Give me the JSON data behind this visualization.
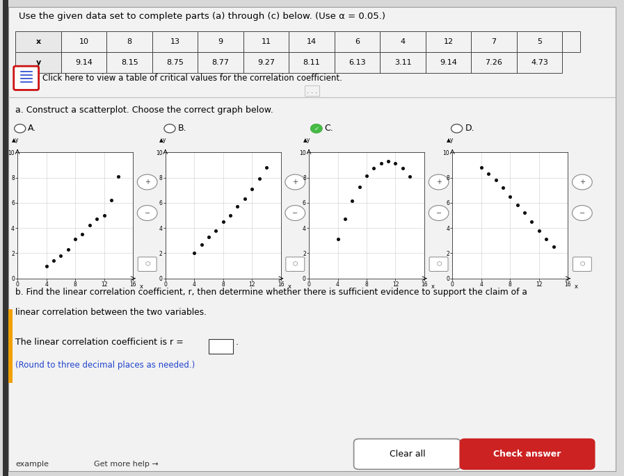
{
  "title": "Use the given data set to complete parts (a) through (c) below. (Use α = 0.05.)",
  "x_data": [
    10,
    8,
    13,
    9,
    11,
    14,
    6,
    4,
    12,
    7,
    5
  ],
  "y_data": [
    9.14,
    8.15,
    8.75,
    8.77,
    9.27,
    8.11,
    6.13,
    3.11,
    9.14,
    7.26,
    4.73
  ],
  "table_headers": [
    "x",
    "10",
    "8",
    "13",
    "9",
    "11",
    "14",
    "6",
    "4",
    "12",
    "7",
    "5"
  ],
  "table_y": [
    "y",
    "9.14",
    "8.15",
    "8.75",
    "8.77",
    "9.27",
    "8.11",
    "6.13",
    "3.11",
    "9.14",
    "7.26",
    "4.73"
  ],
  "click_text": "Click here to view a table of critical values for the correlation coefficient.",
  "part_a_text": "a. Construct a scatterplot. Choose the correct graph below.",
  "part_b_line1": "b. Find the linear correlation coefficient, r, then determine whether there is sufficient evidence to support the claim of a",
  "part_b_line2": "linear correlation between the two variables.",
  "part_b2_text": "The linear correlation coefficient is r =",
  "part_b3_text": "(Round to three decimal places as needed.)",
  "options": [
    "A.",
    "B.",
    "C.",
    "D."
  ],
  "correct_option": "C",
  "bottom_text1": "Clear all",
  "bottom_text2": "Check answer",
  "example_text": "example",
  "get_more_text": "Get more help →",
  "plot_A_x": [
    4,
    5,
    6,
    7,
    8,
    9,
    10,
    11,
    12,
    13,
    14
  ],
  "plot_A_y": [
    1.0,
    1.4,
    1.8,
    2.3,
    3.1,
    3.5,
    4.2,
    4.7,
    5.0,
    6.2,
    8.1
  ],
  "plot_B_x": [
    4,
    5,
    6,
    7,
    8,
    9,
    10,
    11,
    12,
    13,
    14
  ],
  "plot_B_y": [
    2.0,
    2.7,
    3.3,
    3.8,
    4.5,
    5.0,
    5.7,
    6.3,
    7.1,
    7.9,
    8.8
  ],
  "plot_D_x": [
    4,
    5,
    6,
    7,
    8,
    9,
    10,
    11,
    12,
    13,
    14
  ],
  "plot_D_y": [
    8.8,
    8.3,
    7.8,
    7.2,
    6.5,
    5.8,
    5.2,
    4.5,
    3.8,
    3.1,
    2.5
  ]
}
